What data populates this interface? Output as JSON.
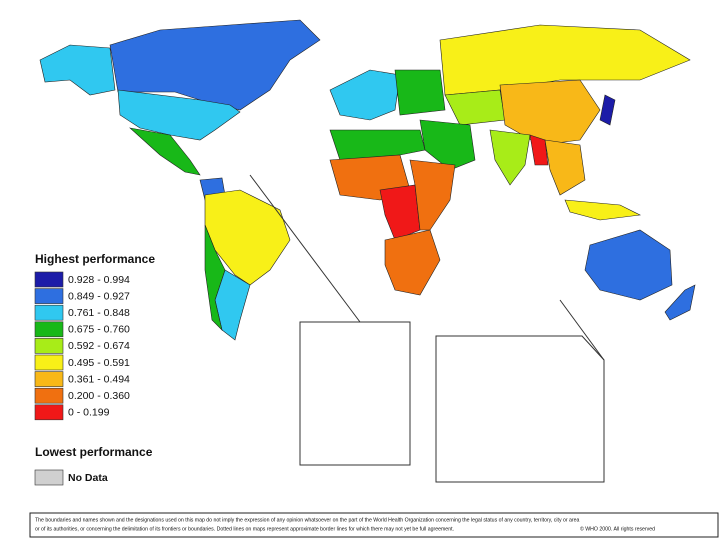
{
  "legend": {
    "title": "Highest performance",
    "items": [
      {
        "label": "0.928 - 0.994",
        "color": "#1c1ca8"
      },
      {
        "label": "0.849 - 0.927",
        "color": "#2e6fe0"
      },
      {
        "label": "0.761 - 0.848",
        "color": "#30c8f0"
      },
      {
        "label": "0.675 - 0.760",
        "color": "#18b818"
      },
      {
        "label": "0.592 - 0.674",
        "color": "#a8ec18"
      },
      {
        "label": "0.495 - 0.591",
        "color": "#f8f018"
      },
      {
        "label": "0.361 - 0.494",
        "color": "#f8b818"
      },
      {
        "label": "0.200 - 0.360",
        "color": "#f07010"
      },
      {
        "label": "0 - 0.199",
        "color": "#f01818"
      }
    ],
    "footer": "Lowest performance",
    "no_data": {
      "label": "No Data",
      "color": "#d0d0d0"
    }
  },
  "disclaimer": {
    "line1": "The boundaries and names shown and the designations used on this map do not imply the expression of any opinion whatsoever on the part of the World Health Organization concerning the legal status of any country, territory, city or area",
    "line2": "or of its authorities, or concerning the delimitation of its frontiers or boundaries. Dotted lines on maps represent approximate border lines for which there may not yet be full agreement.",
    "copyright": "© WHO 2000. All rights reserved"
  }
}
